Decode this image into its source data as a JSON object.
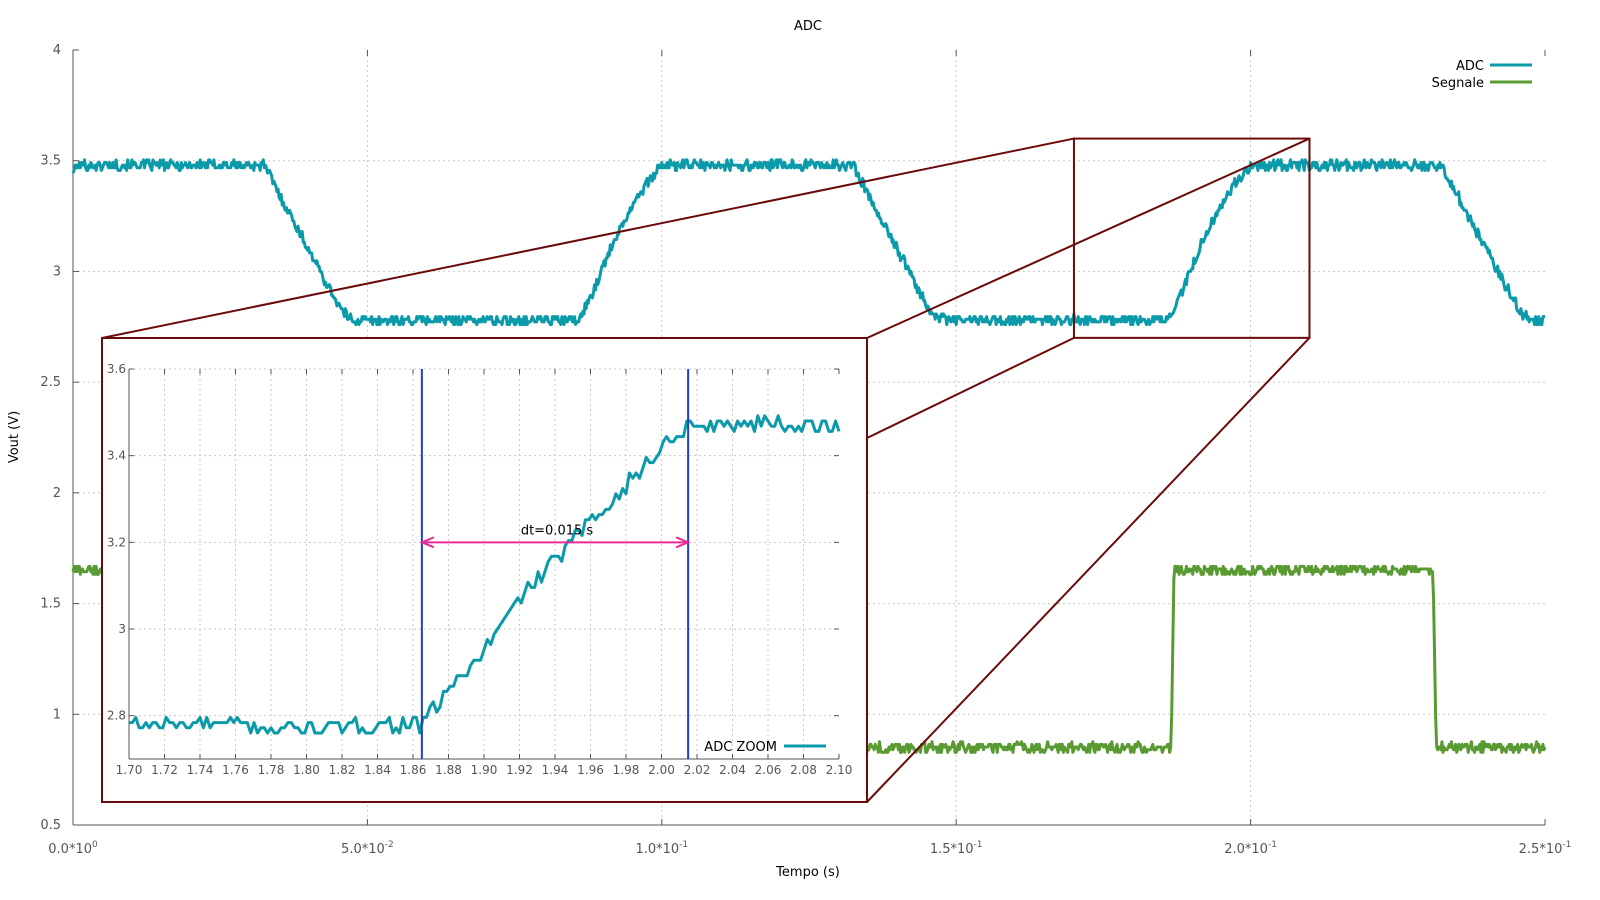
{
  "chart_data": [
    {
      "id": "main",
      "type": "line",
      "title": "ADC",
      "xlabel": "Tempo (s)",
      "ylabel": "Vout (V)",
      "xlim": [
        0,
        0.25
      ],
      "ylim": [
        0.5,
        4
      ],
      "xticks": [
        {
          "value": 0.0,
          "base": "0.0*10",
          "exp": "0"
        },
        {
          "value": 0.05,
          "base": "5.0*10",
          "exp": "-2"
        },
        {
          "value": 0.1,
          "base": "1.0*10",
          "exp": "-1"
        },
        {
          "value": 0.15,
          "base": "1.5*10",
          "exp": "-1"
        },
        {
          "value": 0.2,
          "base": "2.0*10",
          "exp": "-1"
        },
        {
          "value": 0.25,
          "base": "2.5*10",
          "exp": "-1"
        }
      ],
      "yticks": [
        "0.5",
        "1",
        "1.5",
        "2",
        "2.5",
        "3",
        "3.5",
        "4"
      ],
      "grid": true,
      "legend_position": "top-right",
      "series": [
        {
          "name": "ADC",
          "color": "#0a9aaa",
          "points": [
            [
              0.0,
              3.45
            ],
            [
              0.0008,
              3.48
            ],
            [
              0.02,
              3.48
            ],
            [
              0.0325,
              3.48
            ],
            [
              0.036,
              3.3
            ],
            [
              0.04,
              3.1
            ],
            [
              0.043,
              2.95
            ],
            [
              0.046,
              2.81
            ],
            [
              0.048,
              2.78
            ],
            [
              0.07,
              2.78
            ],
            [
              0.086,
              2.78
            ],
            [
              0.089,
              2.95
            ],
            [
              0.092,
              3.15
            ],
            [
              0.096,
              3.35
            ],
            [
              0.1,
              3.48
            ],
            [
              0.13,
              3.48
            ],
            [
              0.1325,
              3.48
            ],
            [
              0.136,
              3.3
            ],
            [
              0.14,
              3.1
            ],
            [
              0.143,
              2.95
            ],
            [
              0.146,
              2.81
            ],
            [
              0.148,
              2.78
            ],
            [
              0.17,
              2.78
            ],
            [
              0.186,
              2.78
            ],
            [
              0.189,
              2.95
            ],
            [
              0.192,
              3.15
            ],
            [
              0.196,
              3.35
            ],
            [
              0.2,
              3.48
            ],
            [
              0.23,
              3.48
            ],
            [
              0.2325,
              3.48
            ],
            [
              0.236,
              3.3
            ],
            [
              0.24,
              3.1
            ],
            [
              0.243,
              2.95
            ],
            [
              0.246,
              2.81
            ],
            [
              0.248,
              2.78
            ],
            [
              0.25,
              2.78
            ]
          ]
        },
        {
          "name": "Segnale",
          "color": "#5a9a32",
          "points": [
            [
              0.0,
              1.65
            ],
            [
              0.0045,
              1.65
            ],
            [
              0.134,
              0.85
            ],
            [
              0.1865,
              0.85
            ],
            [
              0.187,
              1.65
            ],
            [
              0.231,
              1.65
            ],
            [
              0.2315,
              0.85
            ],
            [
              0.25,
              0.85
            ]
          ]
        }
      ]
    },
    {
      "id": "zoom",
      "type": "line",
      "xlim": [
        1.7,
        2.1
      ],
      "ylim": [
        2.7,
        3.6
      ],
      "xticks": [
        "1.70",
        "1.72",
        "1.74",
        "1.76",
        "1.78",
        "1.80",
        "1.82",
        "1.84",
        "1.86",
        "1.88",
        "1.90",
        "1.92",
        "1.94",
        "1.96",
        "1.98",
        "2.00",
        "2.02",
        "2.04",
        "2.06",
        "2.08",
        "2.10"
      ],
      "yticks": [
        "2.8",
        "3",
        "3.2",
        "3.4",
        "3.6"
      ],
      "grid": true,
      "legend_position": "bottom-right",
      "series": [
        {
          "name": "ADC ZOOM",
          "color": "#0a9aaa",
          "points": [
            [
              1.7,
              2.78
            ],
            [
              1.72,
              2.78
            ],
            [
              1.74,
              2.78
            ],
            [
              1.76,
              2.78
            ],
            [
              1.78,
              2.77
            ],
            [
              1.8,
              2.77
            ],
            [
              1.82,
              2.77
            ],
            [
              1.84,
              2.78
            ],
            [
              1.865,
              2.78
            ],
            [
              1.88,
              2.86
            ],
            [
              1.9,
              2.95
            ],
            [
              1.92,
              3.07
            ],
            [
              1.94,
              3.16
            ],
            [
              1.96,
              3.25
            ],
            [
              1.98,
              3.33
            ],
            [
              2.0,
              3.42
            ],
            [
              2.015,
              3.47
            ],
            [
              2.04,
              3.47
            ],
            [
              2.06,
              3.48
            ],
            [
              2.08,
              3.47
            ],
            [
              2.1,
              3.46
            ]
          ]
        }
      ],
      "markers": {
        "color": "#1f3fbf",
        "x": [
          1.865,
          2.015
        ]
      },
      "annotation": {
        "text": "dt=0.015 s",
        "color": "#ee2a9a",
        "y": 3.2,
        "from": 1.865,
        "to": 2.015
      }
    }
  ],
  "zoom_region": {
    "color": "#6b0a0a",
    "main_xlim": [
      0.17,
      0.21
    ],
    "main_ylim": [
      2.7,
      3.6
    ]
  }
}
